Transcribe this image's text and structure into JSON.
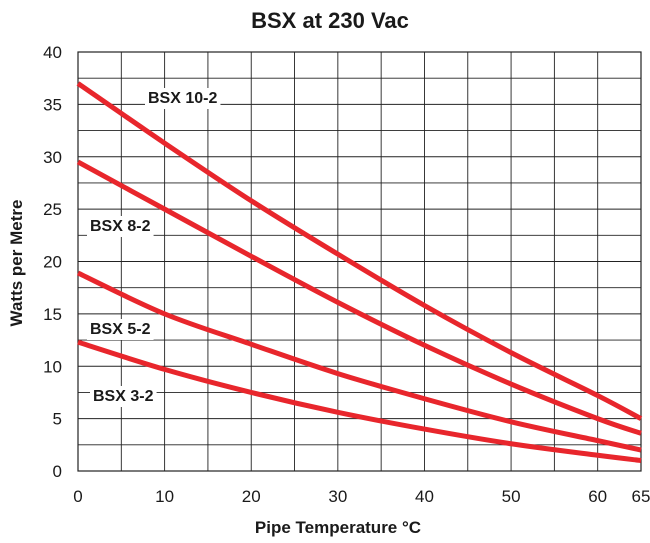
{
  "chart_data": {
    "type": "line",
    "title": "BSX at 230 Vac",
    "xlabel": "Pipe Temperature °C",
    "ylabel": "Watts per Metre",
    "xlim": [
      0,
      65
    ],
    "ylim": [
      0,
      40
    ],
    "x_ticks": [
      0,
      10,
      20,
      30,
      40,
      50,
      60,
      65
    ],
    "y_ticks": [
      0,
      5,
      10,
      15,
      20,
      25,
      30,
      35,
      40
    ],
    "grid": true,
    "line_color": "#e8262c",
    "series": [
      {
        "name": "BSX 10-2",
        "x": [
          0,
          10,
          20,
          30,
          40,
          50,
          60,
          65
        ],
        "y": [
          37.0,
          31.3,
          25.8,
          20.7,
          15.8,
          11.3,
          7.2,
          5.0
        ]
      },
      {
        "name": "BSX 8-2",
        "x": [
          0,
          10,
          20,
          30,
          40,
          50,
          60,
          65
        ],
        "y": [
          29.5,
          25.0,
          20.5,
          16.1,
          12.0,
          8.3,
          5.0,
          3.6
        ]
      },
      {
        "name": "BSX 5-2",
        "x": [
          0,
          10,
          20,
          30,
          40,
          50,
          60,
          65
        ],
        "y": [
          18.9,
          15.0,
          12.1,
          9.3,
          6.9,
          4.7,
          2.9,
          2.0
        ]
      },
      {
        "name": "BSX 3-2",
        "x": [
          0,
          10,
          20,
          30,
          40,
          50,
          60,
          65
        ],
        "y": [
          12.3,
          9.7,
          7.5,
          5.6,
          4.0,
          2.6,
          1.5,
          1.0
        ]
      }
    ]
  }
}
